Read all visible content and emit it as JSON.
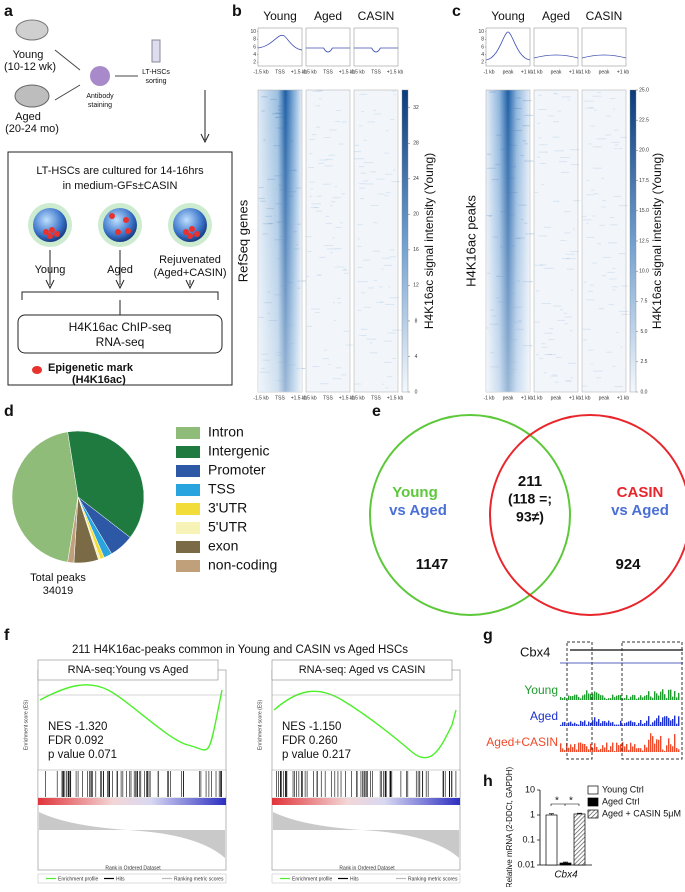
{
  "panels": {
    "a": {
      "label": "a",
      "young": [
        "Young",
        "(10-12 wk)"
      ],
      "aged": [
        "Aged",
        "(20-24 mo)"
      ],
      "staining": [
        "Antibody",
        "staining"
      ],
      "sorting": [
        "LT-HSCs",
        "sorting"
      ],
      "culture": [
        "LT-HSCs are cultured for 14-16hrs",
        "in medium-GFs±CASIN"
      ],
      "cells": [
        "Young",
        "Aged",
        "Rejuvenated",
        "(Aged+CASIN)"
      ],
      "assays": [
        "H4K16ac ChIP-seq",
        "RNA-seq"
      ],
      "mark": [
        "Epigenetic mark",
        "(H4K16ac)"
      ]
    },
    "b": {
      "label": "b",
      "columns": [
        "Young",
        "Aged",
        "CASIN"
      ],
      "profile_axis": [
        "-1.5 kb",
        "TSS",
        "+1.5 kb"
      ],
      "profile_ylim": [
        1,
        11
      ],
      "profile_yticks": [
        2,
        4,
        6,
        8,
        10
      ],
      "row_label": "RefSeq genes",
      "colorbar": {
        "label": "H4K16ac signal intensity (Young)",
        "lim": [
          0,
          34
        ],
        "ticks": [
          0,
          4,
          8,
          12,
          16,
          20,
          24,
          28,
          32
        ]
      }
    },
    "c": {
      "label": "c",
      "columns": [
        "Young",
        "Aged",
        "CASIN"
      ],
      "profile_axis": [
        "-1 kb",
        "peak",
        "+1 kb"
      ],
      "profile_ylim": [
        1,
        11
      ],
      "profile_yticks": [
        2,
        4,
        6,
        8,
        10
      ],
      "row_label": "H4K16ac peaks",
      "colorbar": {
        "label": "H4K16ac signal intensity (Young)",
        "lim": [
          0,
          25
        ],
        "ticks": [
          {
            "value": 0,
            "label": "0.0"
          },
          2.5,
          {
            "value": 5,
            "label": "5.0"
          },
          7.5,
          {
            "value": 10,
            "label": "10.0"
          },
          12.5,
          {
            "value": 15,
            "label": "15.0"
          },
          17.5,
          {
            "value": 20,
            "label": "20.0"
          },
          22.5,
          {
            "value": 25,
            "label": "25.0"
          }
        ]
      }
    },
    "d": {
      "label": "d"
    },
    "e": {
      "label": "e",
      "left": [
        "Young",
        "vs Aged"
      ],
      "right": [
        "CASIN",
        "vs Aged"
      ],
      "overlap": [
        "211",
        "(118 =;",
        "93≠)"
      ],
      "left_only": "1147",
      "right_only": "924"
    },
    "f": {
      "label": "f",
      "title": "211 H4K16ac-peaks common in Young and CASIN vs Aged HSCs",
      "y_label": "Enrichment score (ES)",
      "x_label": "Rank in Ordered Dataset",
      "legend": [
        "Enrichment profile",
        "Hits",
        "Ranking metric scores"
      ],
      "plots": [
        {
          "title": "RNA-seq:Young vs Aged",
          "stats": [
            "NES -1.320",
            "FDR 0.092",
            "p value 0.071"
          ]
        },
        {
          "title": "RNA-seq: Aged vs CASIN",
          "stats": [
            "NES -1.150",
            "FDR 0.260",
            "p value 0.217"
          ]
        }
      ]
    },
    "g": {
      "label": "g",
      "gene": "Cbx4",
      "tracks": [
        "Young",
        "Aged",
        "Aged+CASIN"
      ]
    },
    "h": {
      "label": "h"
    }
  },
  "chart_data": [
    {
      "type": "pie",
      "categories": [
        "Intron",
        "Intergenic",
        "Promoter",
        "TSS",
        "3'UTR",
        "5'UTR",
        "exon",
        "non-coding"
      ],
      "values": [
        45,
        38,
        6,
        2,
        1,
        0.5,
        6,
        1.5
      ],
      "colors": [
        "#8fbc79",
        "#1e7a3e",
        "#2c58a6",
        "#2aa4de",
        "#f2dc3a",
        "#f7f2b6",
        "#7a6a46",
        "#bfa07a"
      ],
      "total": [
        "Total peaks",
        "34019"
      ]
    },
    {
      "type": "bar",
      "ylabel": "Relative mRNA (2-DDCt, GAPDH)",
      "categories": [
        "Cbx4"
      ],
      "log_scale": true,
      "ylim": [
        0.01,
        10
      ],
      "yticks": [
        0.01,
        0.1,
        1,
        10
      ],
      "annotations": [
        "*",
        "*"
      ],
      "series": [
        {
          "name": "Young Ctrl",
          "color": "#ffffff",
          "values": [
            1.0
          ],
          "errors": [
            0.12
          ]
        },
        {
          "name": "Aged Ctrl",
          "color": "#000000",
          "values": [
            0.012
          ],
          "errors": [
            0.001
          ]
        },
        {
          "name": "Aged + CASIN 5μM",
          "color": "#555555",
          "hatch": true,
          "values": [
            1.1
          ],
          "errors": [
            0.08
          ]
        }
      ]
    }
  ]
}
